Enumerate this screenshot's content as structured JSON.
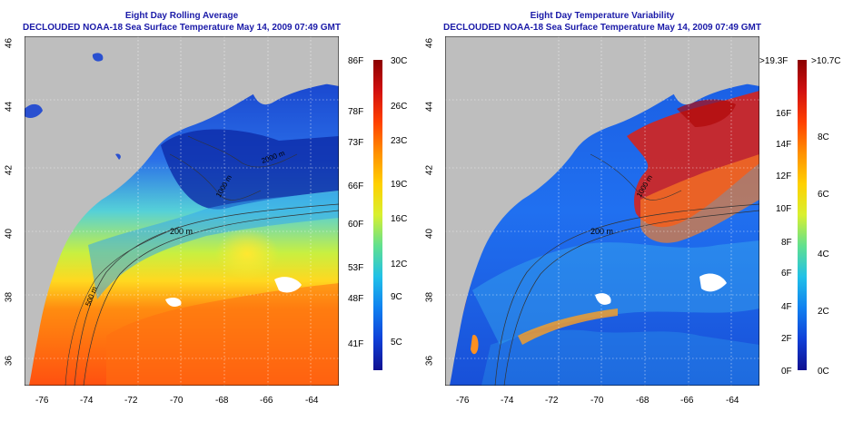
{
  "left_panel": {
    "title": "Eight Day Rolling Average",
    "subtitle": "DECLOUDED NOAA-18 Sea Surface Temperature May 14, 2009 07:49 GMT",
    "contour_labels": [
      "200 m",
      "1000 m",
      "2000 m",
      "500 m"
    ],
    "colorbar": {
      "fahrenheit": [
        "86F",
        "78F",
        "73F",
        "66F",
        "60F",
        "53F",
        "48F",
        "41F"
      ],
      "celsius": [
        "30C",
        "26C",
        "23C",
        "19C",
        "16C",
        "12C",
        "9C",
        "5C"
      ]
    }
  },
  "right_panel": {
    "title": "Eight Day Temperature Variability",
    "subtitle": "DECLOUDED NOAA-18 Sea Surface Temperature May 14, 2009 07:49 GMT",
    "contour_labels": [
      "200 m",
      "1000 m"
    ],
    "colorbar": {
      "fahrenheit": [
        ">19.3F",
        "16F",
        "14F",
        "12F",
        "10F",
        "8F",
        "6F",
        "4F",
        "2F",
        "0F"
      ],
      "celsius": [
        ">10.7C",
        "8C",
        "6C",
        "4C",
        "2C",
        "0C"
      ]
    }
  },
  "x_ticks": [
    "-76",
    "-74",
    "-72",
    "-70",
    "-68",
    "-66",
    "-64"
  ],
  "y_ticks": [
    "46",
    "44",
    "42",
    "40",
    "38",
    "36"
  ],
  "colors": {
    "land": "#bebebe",
    "title": "#1a1aa8",
    "cloud": "#ffffff"
  }
}
